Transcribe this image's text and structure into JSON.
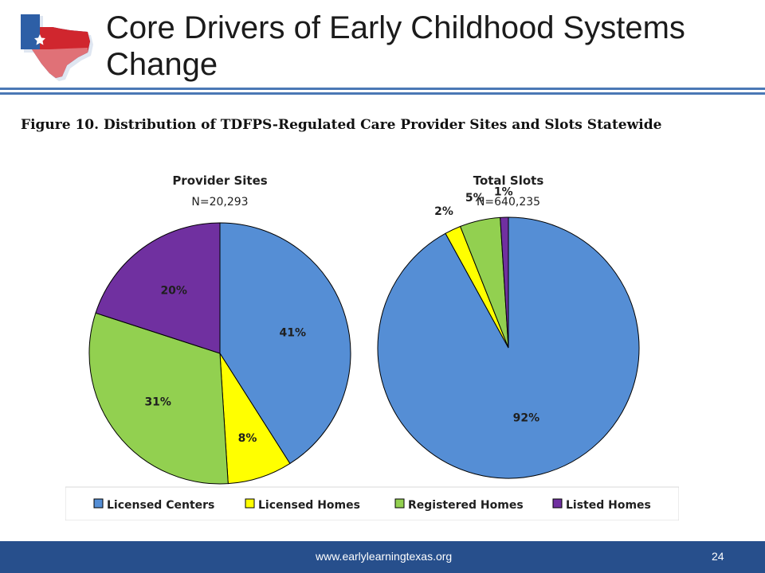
{
  "slide": {
    "title": "Core Drivers of Early Childhood Systems Change",
    "figure_caption": "Figure 10.  Distribution of TDFPS-Regulated Care Provider Sites and Slots Statewide",
    "footer_url": "www.earlylearningtexas.org",
    "page_number": "24"
  },
  "colors": {
    "rule": "#4a78b5",
    "footer": "#274f8c",
    "texas_blue": "#2d5fa6",
    "texas_red": "#d0262e"
  },
  "chart_data": {
    "type": "pie",
    "legend_position": "bottom",
    "categories": [
      "Licensed Centers",
      "Licensed Homes",
      "Registered Homes",
      "Listed Homes"
    ],
    "colors": [
      "#558ed5",
      "#ffff00",
      "#92d050",
      "#7030a0"
    ],
    "charts": [
      {
        "title": "Provider Sites",
        "subtitle": "N=20,293",
        "values": [
          41,
          8,
          31,
          20
        ],
        "labels": [
          "41%",
          "8%",
          "31%",
          "20%"
        ]
      },
      {
        "title": "Total Slots",
        "subtitle": "N=640,235",
        "values": [
          92,
          2,
          5,
          1
        ],
        "labels": [
          "92%",
          "2%",
          "5%",
          "1%"
        ]
      }
    ]
  }
}
